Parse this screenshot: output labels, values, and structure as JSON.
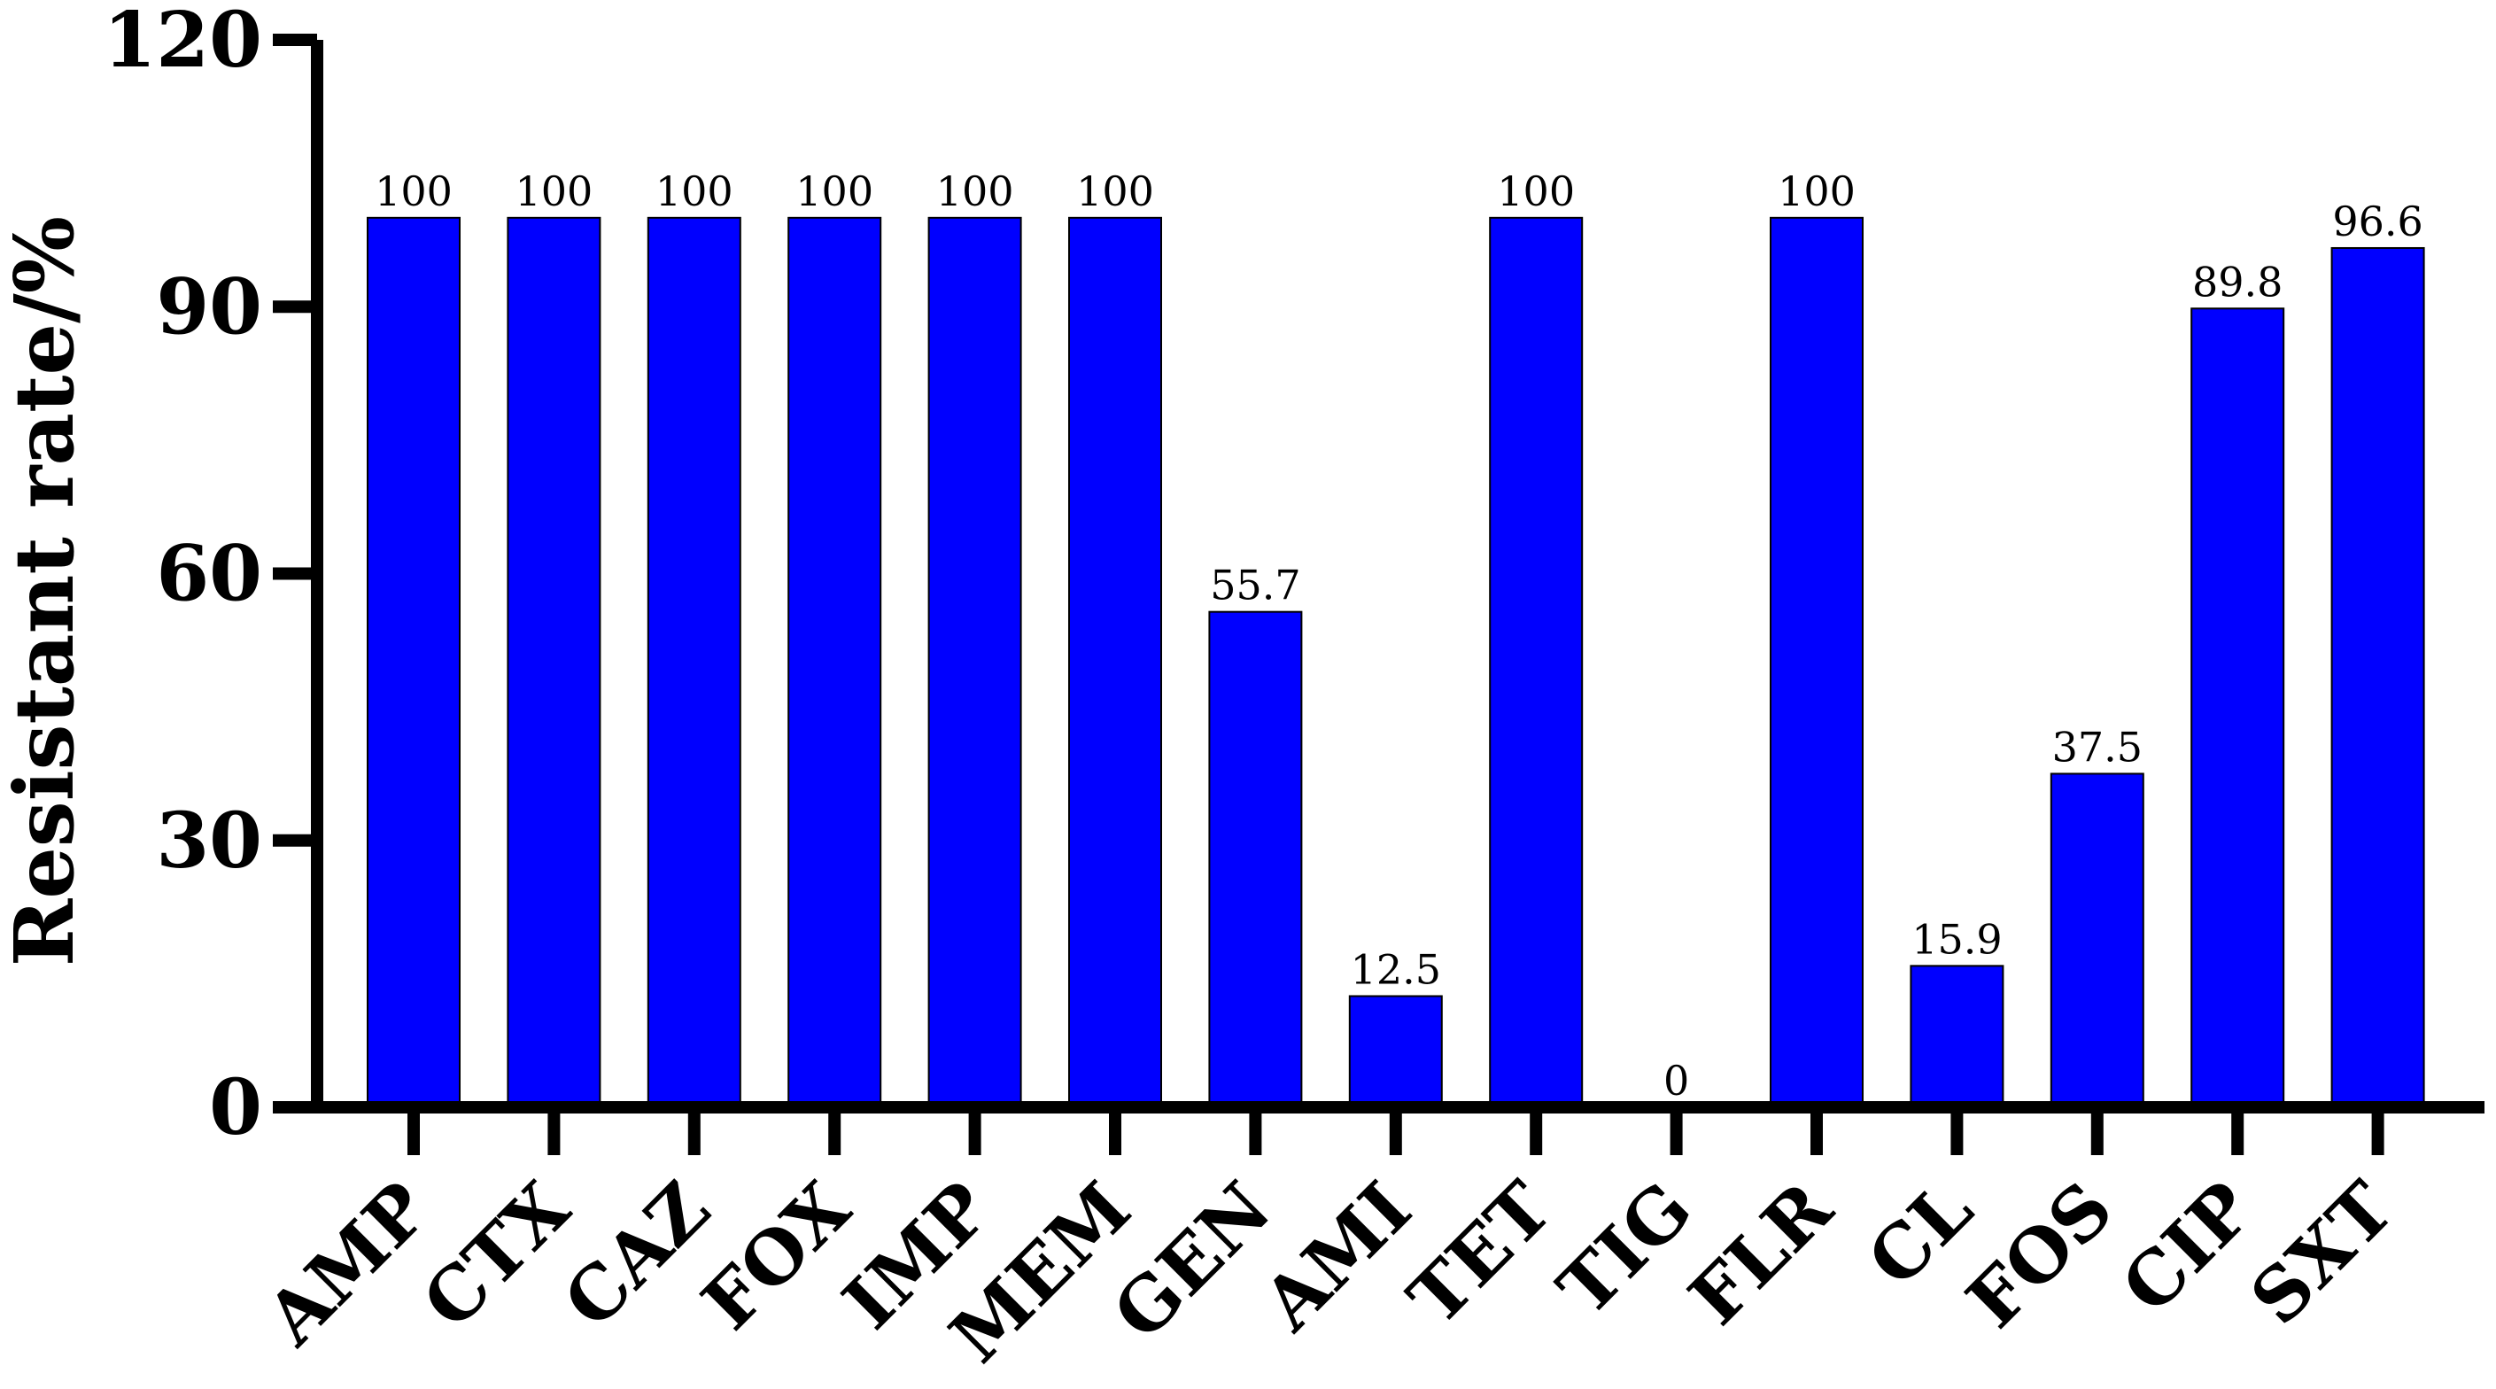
{
  "chart_data": {
    "type": "bar",
    "categories": [
      "AMP",
      "CTX",
      "CAZ",
      "FOX",
      "IMP",
      "MEM",
      "GEN",
      "AMI",
      "TET",
      "TIG",
      "FLR",
      "CL",
      "FOS",
      "CIP",
      "SXT"
    ],
    "values": [
      100,
      100,
      100,
      100,
      100,
      100,
      55.7,
      12.5,
      100,
      0,
      100,
      15.9,
      37.5,
      89.8,
      96.6
    ],
    "value_labels": [
      "100",
      "100",
      "100",
      "100",
      "100",
      "100",
      "55.7",
      "12.5",
      "100",
      "0",
      "100",
      "15.9",
      "37.5",
      "89.8",
      "96.6"
    ],
    "title": "",
    "xlabel": "",
    "ylabel": "Resistant rate/%",
    "ylim": [
      0,
      120
    ],
    "yticks": [
      0,
      30,
      60,
      90,
      120
    ],
    "ytick_labels": [
      "0",
      "30",
      "60",
      "90",
      "120"
    ],
    "bar_color": "#0000FF",
    "grid": false,
    "legend": "none"
  }
}
